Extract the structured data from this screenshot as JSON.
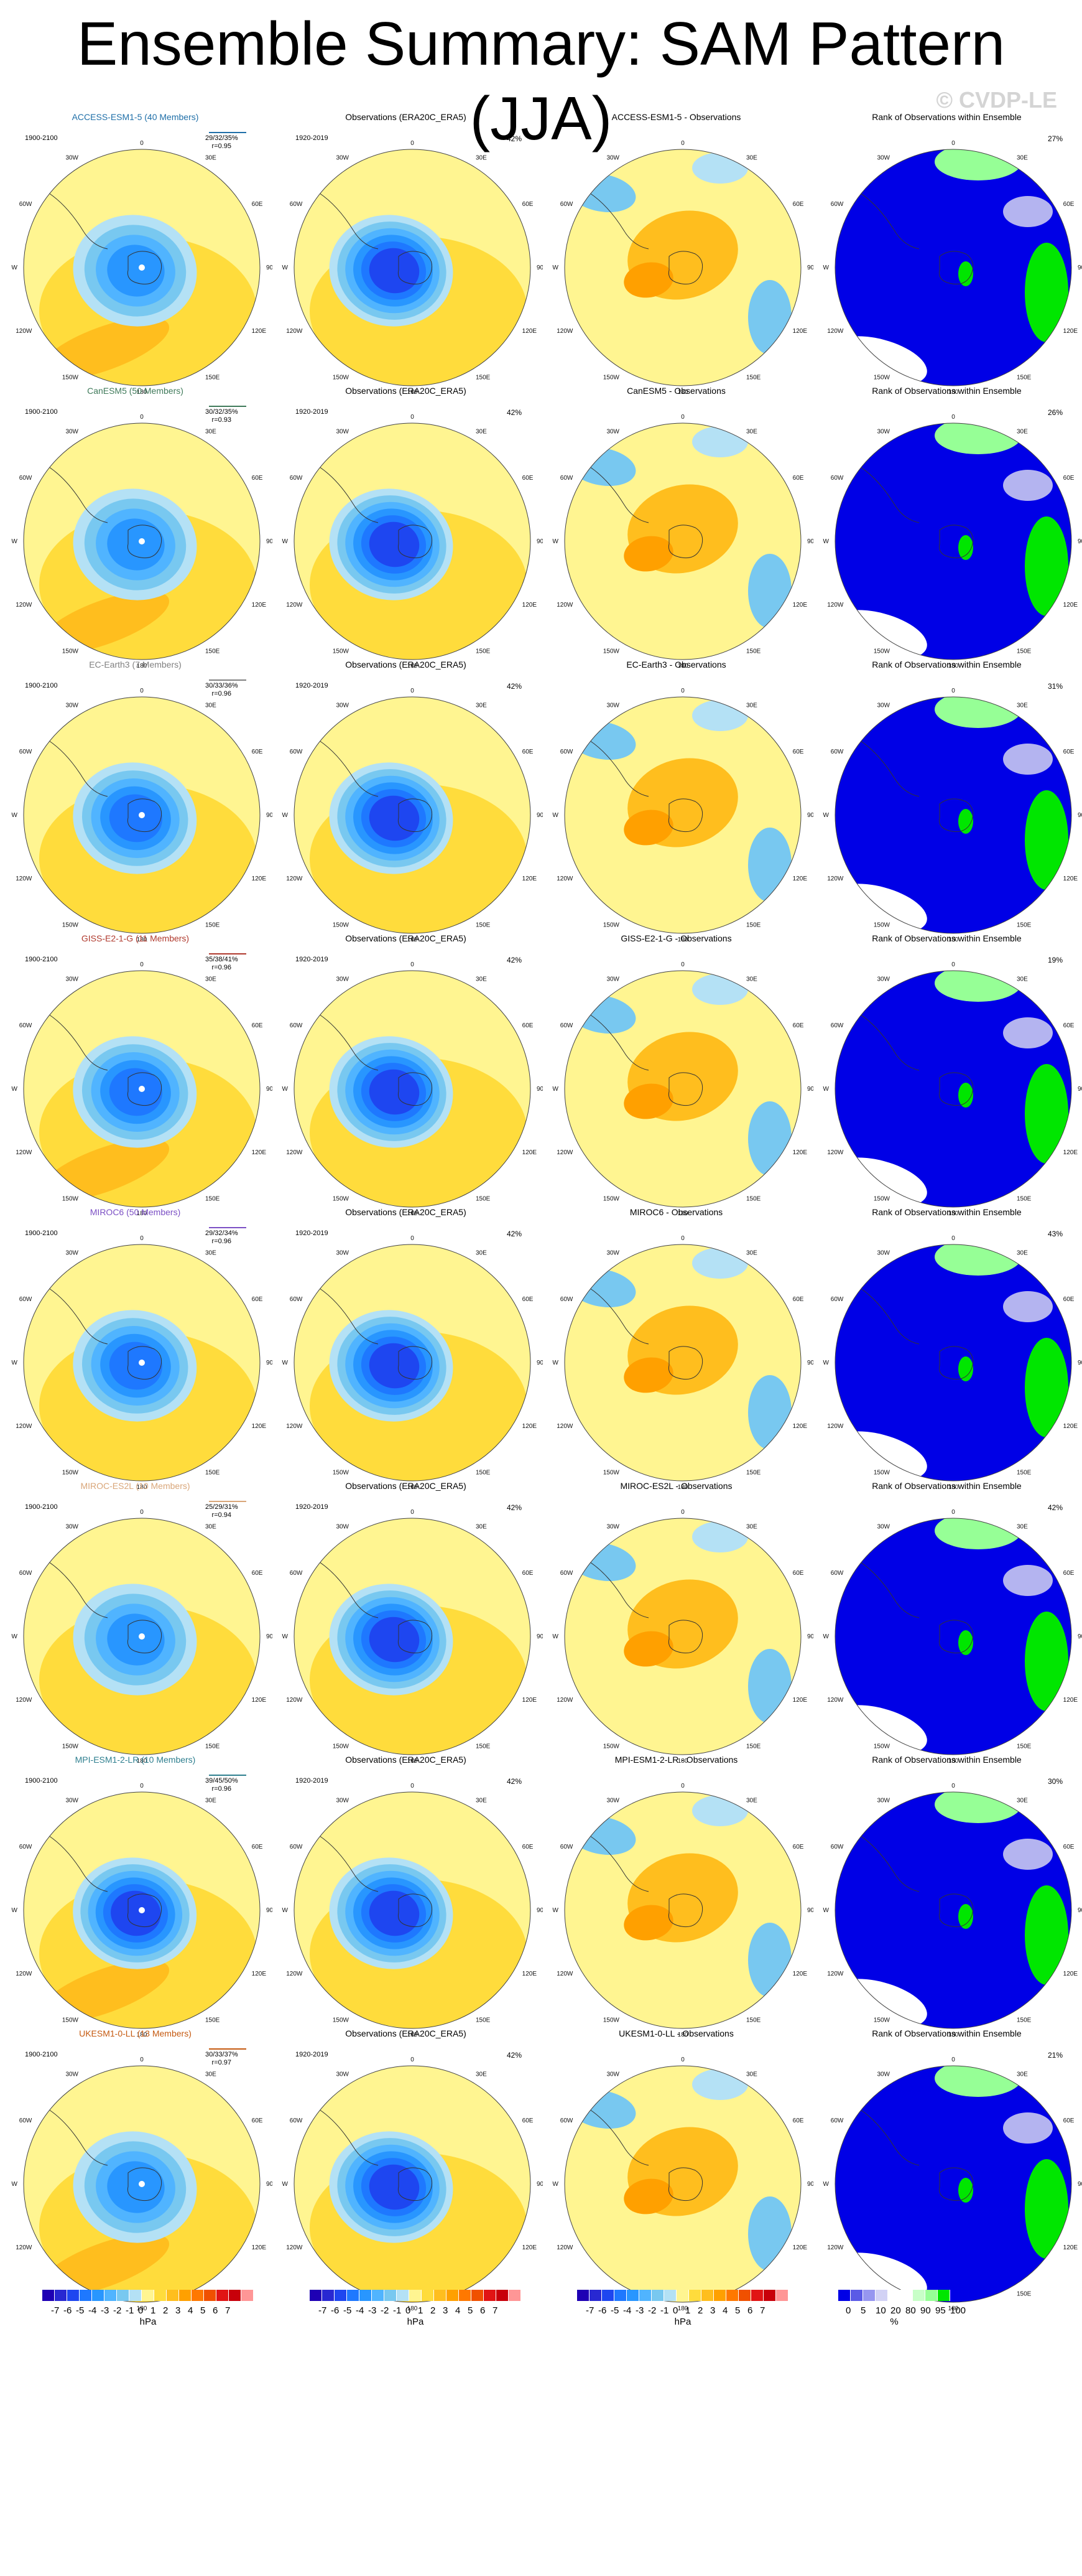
{
  "header": {
    "title": "Ensemble Summary: SAM Pattern (JJA)",
    "watermark": "© CVDP-LE"
  },
  "colors": {
    "model_bands": [
      "#1e00b4",
      "#2828d2",
      "#1e46f0",
      "#1e78ff",
      "#2896ff",
      "#50b4ff",
      "#78c8f0",
      "#b4e1f5",
      "#fff591",
      "#ffdc3c",
      "#ffbe1e",
      "#ffa000",
      "#ff7800",
      "#f05000",
      "#e11414",
      "#c8000a",
      "#ff9696"
    ],
    "rank_bands": [
      "#0000e6",
      "#0000e6",
      "#7676e6",
      "#b4b4f0",
      "#ffffff",
      "#ffffff",
      "#c8ffc8",
      "#96ff96",
      "#00e600"
    ]
  },
  "chart_data": {
    "type": "heatmap",
    "projection": "south-polar-stereographic",
    "longitude_labels": [
      "0",
      "30E",
      "60E",
      "90E",
      "120E",
      "150E",
      "180",
      "150W",
      "120W",
      "90W",
      "60W",
      "30W"
    ],
    "columns": [
      "model",
      "observations",
      "difference",
      "rank"
    ],
    "obs_title": "Observations (ERA20C_ERA5)",
    "obs_years": "1920-2019",
    "obs_pct": "42%",
    "model_years": "1900-2100",
    "rows": [
      {
        "model": "ACCESS-ESM1-5",
        "members": "ACCESS-ESM1-5 (40 Members)",
        "color": "#1f6fa8",
        "stats1": "29/32/35%",
        "stats2": "r=0.95",
        "diff_title": "ACCESS-ESM1-5 - Observations",
        "rank_pct": "27%",
        "min_center_hpa": -4,
        "ring_hpa": 2
      },
      {
        "model": "CanESM5",
        "members": "CanESM5 (50 Members)",
        "color": "#3f7a5a",
        "stats1": "30/32/35%",
        "stats2": "r=0.93",
        "diff_title": "CanESM5 - Observations",
        "rank_pct": "26%",
        "min_center_hpa": -4,
        "ring_hpa": 2
      },
      {
        "model": "EC-Earth3",
        "members": "EC-Earth3 (7 Members)",
        "color": "#808080",
        "stats1": "30/33/36%",
        "stats2": "r=0.96",
        "diff_title": "EC-Earth3 - Observations",
        "rank_pct": "31%",
        "min_center_hpa": -5,
        "ring_hpa": 1
      },
      {
        "model": "GISS-E2-1-G",
        "members": "GISS-E2-1-G (11 Members)",
        "color": "#b03a2e",
        "stats1": "35/38/41%",
        "stats2": "r=0.96",
        "diff_title": "GISS-E2-1-G - Observations",
        "rank_pct": "19%",
        "min_center_hpa": -5,
        "ring_hpa": 2
      },
      {
        "model": "MIROC6",
        "members": "MIROC6 (50 Members)",
        "color": "#7b4fc4",
        "stats1": "29/32/34%",
        "stats2": "r=0.96",
        "diff_title": "MIROC6 - Observations",
        "rank_pct": "43%",
        "min_center_hpa": -5,
        "ring_hpa": 1
      },
      {
        "model": "MIROC-ES2L",
        "members": "MIROC-ES2L (10 Members)",
        "color": "#d9a679",
        "stats1": "25/29/31%",
        "stats2": "r=0.94",
        "diff_title": "MIROC-ES2L - Observations",
        "rank_pct": "42%",
        "min_center_hpa": -4,
        "ring_hpa": 1
      },
      {
        "model": "MPI-ESM1-2-LR",
        "members": "MPI-ESM1-2-LR (10 Members)",
        "color": "#2e7f8f",
        "stats1": "39/45/50%",
        "stats2": "r=0.96",
        "diff_title": "MPI-ESM1-2-LR - Observations",
        "rank_pct": "30%",
        "min_center_hpa": -6,
        "ring_hpa": 2
      },
      {
        "model": "UKESM1-0-LL",
        "members": "UKESM1-0-LL (13 Members)",
        "color": "#c55a11",
        "stats1": "30/33/37%",
        "stats2": "r=0.97",
        "diff_title": "UKESM1-0-LL - Observations",
        "rank_pct": "21%",
        "min_center_hpa": -4,
        "ring_hpa": 2
      }
    ],
    "colorbar_hpa": {
      "labels": [
        "-7",
        "-6",
        "-5",
        "-4",
        "-3",
        "-2",
        "-1",
        "0",
        "1",
        "2",
        "3",
        "4",
        "5",
        "6",
        "7"
      ],
      "unit": "hPa"
    },
    "colorbar_rank": {
      "labels": [
        "0",
        "5",
        "10",
        "20",
        "80",
        "90",
        "95",
        "100"
      ],
      "unit": "%"
    }
  }
}
